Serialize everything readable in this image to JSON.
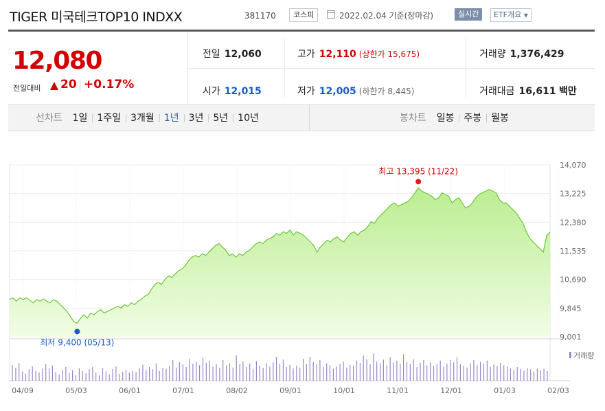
{
  "header": {
    "title": "TIGER 미국테크TOP10 INDXX",
    "code": "381170",
    "market_badge": "코스피",
    "date_text": "2022.02.04 기준(장마감)",
    "realtime_button": "실시간",
    "etf_button": "ETF개요"
  },
  "quote": {
    "price": "12,080",
    "change_label": "전일대비",
    "change_value": "20",
    "change_pct": "+0.17%",
    "prev_close_label": "전일",
    "prev_close": "12,060",
    "high_label": "고가",
    "high": "12,110",
    "upper_limit": "(상한가 15,675)",
    "volume_label": "거래량",
    "volume": "1,376,429",
    "open_label": "시가",
    "open": "12,015",
    "low_label": "저가",
    "low": "12,005",
    "lower_limit": "(하한가 8,445)",
    "turnover_label": "거래대금",
    "turnover": "16,611",
    "turnover_unit": "백만",
    "up_color": "#d20000",
    "down_color": "#1a5bc7"
  },
  "tabs": {
    "line_label": "선차트",
    "line_items": [
      "1일",
      "1주일",
      "3개월",
      "1년",
      "3년",
      "5년",
      "10년"
    ],
    "line_selected": 3,
    "candle_label": "봉차트",
    "candle_items": [
      "일봉",
      "주봉",
      "월봉"
    ]
  },
  "chart_data": {
    "type": "area",
    "y_ticks": [
      "14,070",
      "13,225",
      "12,380",
      "11,535",
      "10,690",
      "9,845",
      "9,001"
    ],
    "ylim": [
      9001,
      14070
    ],
    "x_ticks": [
      "04/09",
      "05/03",
      "06/01",
      "07/01",
      "08/02",
      "09/01",
      "10/01",
      "11/01",
      "12/01",
      "01/03",
      "02/03"
    ],
    "high_annotation": "최고 13,395 (11/22)",
    "low_annotation": "최저 9,400 (05/13)",
    "high_value": 13395,
    "low_value": 9400,
    "volume_legend": "거래량",
    "series": [
      {
        "values": [
          10100,
          10150,
          10050,
          10150,
          10100,
          10150,
          10080,
          10000,
          10100,
          10050,
          10120,
          10050,
          10000,
          10100,
          10050,
          9950,
          9850,
          9750,
          9600,
          9450,
          9400,
          9550,
          9650,
          9550,
          9700,
          9650,
          9750,
          9800,
          9700,
          9750,
          9800,
          9850,
          9900,
          9850,
          9950,
          9900,
          10000,
          9950,
          10050,
          10100,
          10200,
          10250,
          10400,
          10550,
          10600,
          10550,
          10700,
          10800,
          10750,
          10850,
          10950,
          11000,
          11100,
          11250,
          11350,
          11400,
          11350,
          11450,
          11400,
          11500,
          11600,
          11700,
          11750,
          11650,
          11550,
          11400,
          11450,
          11350,
          11450,
          11400,
          11500,
          11550,
          11650,
          11750,
          11800,
          11750,
          11850,
          11900,
          11950,
          12050,
          12000,
          12100,
          12050,
          12150,
          12000,
          12100,
          12050,
          12000,
          11900,
          11800,
          11700,
          11500,
          11650,
          11750,
          11850,
          11800,
          11900,
          11950,
          11850,
          11800,
          11950,
          12050,
          12100,
          12000,
          12100,
          12150,
          12250,
          12400,
          12350,
          12500,
          12600,
          12700,
          12800,
          12900,
          12950,
          12850,
          12900,
          12950,
          13000,
          13100,
          13250,
          13395,
          13300,
          13250,
          13200,
          13150,
          13050,
          13100,
          13250,
          13200,
          13150,
          12950,
          13050,
          13100,
          12950,
          12800,
          12850,
          12950,
          13100,
          13200,
          13250,
          13300,
          13350,
          13300,
          13250,
          13050,
          12950,
          12950,
          12850,
          12750,
          12650,
          12500,
          12350,
          12100,
          11900,
          11800,
          11700,
          11600,
          11500,
          12000,
          12080
        ]
      }
    ],
    "volume_values": [
      34,
      28,
      39,
      20,
      15,
      25,
      31,
      22,
      18,
      26,
      36,
      27,
      33,
      19,
      14,
      24,
      30,
      17,
      23,
      12,
      27,
      21,
      16,
      25,
      30,
      18,
      12,
      28,
      20,
      14,
      26,
      31,
      15,
      20,
      24,
      18,
      22,
      19,
      27,
      35,
      23,
      30,
      25,
      38,
      22,
      28,
      26,
      33,
      45,
      29,
      40,
      36,
      30,
      48,
      37,
      42,
      34,
      50,
      39,
      44,
      31,
      36,
      28,
      45,
      34,
      38,
      29,
      55,
      36,
      42,
      30,
      38,
      26,
      43,
      33,
      28,
      39,
      31,
      40,
      52,
      37,
      46,
      30,
      35,
      27,
      33,
      29,
      48,
      36,
      52,
      41,
      36,
      45,
      30,
      38,
      34,
      26,
      31,
      37,
      42,
      29,
      35,
      33,
      44,
      39,
      55,
      47,
      36,
      60,
      42,
      38,
      46,
      33,
      51,
      40,
      44,
      37,
      58,
      41,
      36,
      47,
      30,
      39,
      45,
      34,
      40,
      32,
      36,
      44,
      31,
      37,
      45,
      40,
      51,
      36,
      33,
      29,
      38,
      45,
      34,
      41,
      37,
      44,
      30,
      36,
      32,
      39,
      34,
      31,
      27,
      24,
      30,
      26,
      22,
      28,
      25,
      20,
      27,
      23,
      26,
      21
    ]
  }
}
